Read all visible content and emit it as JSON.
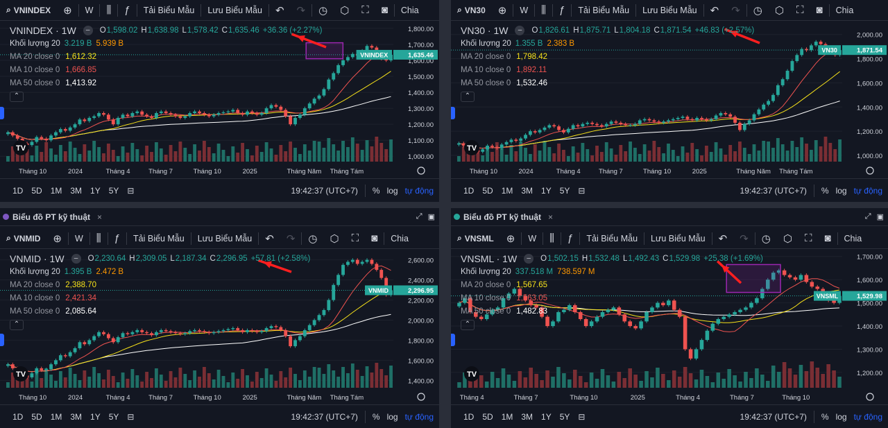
{
  "colors": {
    "up": "#26a69a",
    "down": "#ef5350",
    "ma20": "#f7e21a",
    "ma10": "#ef5350",
    "ma50": "#ffffff",
    "volUp": "#1f6f66",
    "volDown": "#7a2e34",
    "accent": "#2962ff",
    "highlight": "#9c27b0",
    "arrow": "#ff1f1f"
  },
  "toolbar": {
    "buttons": [
      "W",
      "Tải Biểu Mẫu",
      "Lưu Biểu Mẫu"
    ],
    "chia": "Chia"
  },
  "bottom": {
    "ranges": [
      "1D",
      "5D",
      "1M",
      "3M",
      "1Y",
      "5Y"
    ],
    "time": "19:42:37 (UTC+7)",
    "percent": "%",
    "log": "log",
    "auto": "tự động"
  },
  "tabs": {
    "title": "Biểu đồ PT kỹ thuật",
    "close": "×"
  },
  "charts": [
    {
      "symbol": "VNINDEX",
      "title": "VNINDEX · 1W",
      "ohlc": {
        "o": "1,598.02",
        "h": "1,638.98",
        "l": "1,578.42",
        "c": "1,635.46",
        "chg": "+36.36 (+2.27%)"
      },
      "volume": {
        "label": "Khối lượng 20",
        "v1": "3.219 B",
        "v2": "5.939 B"
      },
      "ma20": {
        "label": "MA 20 close 0",
        "value": "1,612.32"
      },
      "ma10": {
        "label": "MA 10 close 0",
        "value": "1,666.85"
      },
      "ma50": {
        "label": "MA 50 close 0",
        "value": "1,413.92"
      },
      "price_tag": {
        "label": "VNINDEX",
        "value": "1,635.46"
      },
      "ylim": [
        975,
        1830
      ],
      "y_ticks": [
        "1,800.00",
        "1,700.00",
        "1,600.00",
        "1,500.00",
        "1,400.00",
        "1,300.00",
        "1,200.00",
        "1,100.00",
        "1,000.00"
      ],
      "y_tick_values": [
        1800,
        1700,
        1600,
        1500,
        1400,
        1300,
        1200,
        1100,
        1000
      ],
      "x_ticks": [
        "Tháng 10",
        "2024",
        "Tháng 4",
        "Tháng 7",
        "Tháng 10",
        "2025",
        "Tháng Năm",
        "Tháng Tám"
      ],
      "x_tick_pos": [
        0.07,
        0.18,
        0.29,
        0.4,
        0.52,
        0.63,
        0.77,
        0.88
      ],
      "closes": [
        1150,
        1130,
        1110,
        1080,
        1070,
        1090,
        1120,
        1110,
        1100,
        1130,
        1150,
        1170,
        1160,
        1180,
        1200,
        1230,
        1220,
        1240,
        1250,
        1270,
        1260,
        1230,
        1200,
        1240,
        1260,
        1250,
        1270,
        1280,
        1260,
        1250,
        1240,
        1270,
        1280,
        1270,
        1260,
        1250,
        1240,
        1250,
        1270,
        1280,
        1270,
        1260,
        1250,
        1260,
        1270,
        1275,
        1280,
        1290,
        1270,
        1260,
        1280,
        1270,
        1260,
        1270,
        1300,
        1320,
        1310,
        1290,
        1250,
        1200,
        1240,
        1260,
        1300,
        1330,
        1360,
        1380,
        1420,
        1480,
        1520,
        1570,
        1600,
        1620,
        1640,
        1630,
        1660,
        1690,
        1680,
        1650,
        1610,
        1600,
        1635
      ],
      "highlight": [
        0.775,
        0.87,
        1610,
        1710
      ],
      "arrow": [
        470,
        68,
        428,
        52
      ]
    },
    {
      "symbol": "VN30",
      "title": "VN30 · 1W",
      "ohlc": {
        "o": "1,826.61",
        "h": "1,875.71",
        "l": "1,804.18",
        "c": "1,871.54",
        "chg": "+46.83 (+2.57%)"
      },
      "volume": {
        "label": "Khối lượng 20",
        "v1": "1.355 B",
        "v2": "2.383 B"
      },
      "ma20": {
        "label": "MA 20 close 0",
        "value": "1,798.42"
      },
      "ma10": {
        "label": "MA 10 close 0",
        "value": "1,892.11"
      },
      "ma50": {
        "label": "MA 50 close 0",
        "value": "1,532.46"
      },
      "price_tag": {
        "label": "VN30",
        "value": "1,871.54"
      },
      "ylim": [
        960,
        2090
      ],
      "y_ticks": [
        "2,000.00",
        "1,800.00",
        "1,600.00",
        "1,400.00",
        "1,200.00",
        "1,000.00"
      ],
      "y_tick_values": [
        2000,
        1800,
        1600,
        1400,
        1200,
        1000
      ],
      "x_ticks": [
        "Tháng 10",
        "2024",
        "Tháng 4",
        "Tháng 7",
        "Tháng 10",
        "2025",
        "Tháng Năm",
        "Tháng Tám"
      ],
      "x_tick_pos": [
        0.07,
        0.18,
        0.29,
        0.4,
        0.52,
        0.63,
        0.77,
        0.88
      ],
      "closes": [
        1100,
        1080,
        1060,
        1040,
        1030,
        1050,
        1080,
        1070,
        1060,
        1090,
        1110,
        1130,
        1120,
        1140,
        1170,
        1200,
        1190,
        1210,
        1230,
        1250,
        1240,
        1210,
        1190,
        1220,
        1250,
        1240,
        1260,
        1270,
        1260,
        1250,
        1240,
        1260,
        1280,
        1270,
        1260,
        1250,
        1250,
        1260,
        1290,
        1300,
        1290,
        1280,
        1270,
        1280,
        1290,
        1300,
        1310,
        1320,
        1300,
        1290,
        1310,
        1300,
        1290,
        1300,
        1330,
        1350,
        1340,
        1320,
        1270,
        1210,
        1260,
        1290,
        1340,
        1380,
        1420,
        1450,
        1500,
        1580,
        1630,
        1700,
        1780,
        1830,
        1880,
        1870,
        1910,
        1940,
        1920,
        1890,
        1850,
        1830,
        1871
      ],
      "highlight": null,
      "arrow": [
        1095,
        62,
        1052,
        45
      ]
    },
    {
      "symbol": "VNMID",
      "title": "VNMID · 1W",
      "ohlc": {
        "o": "2,230.64",
        "h": "2,309.05",
        "l": "2,187.34",
        "c": "2,296.95",
        "chg": "+57.81 (+2.58%)"
      },
      "volume": {
        "label": "Khối lượng 20",
        "v1": "1.395 B",
        "v2": "2.472 B"
      },
      "ma20": {
        "label": "MA 20 close 0",
        "value": "2,388.70"
      },
      "ma10": {
        "label": "MA 10 close 0",
        "value": "2,421.34"
      },
      "ma50": {
        "label": "MA 50 close 0",
        "value": "2,085.64"
      },
      "price_tag": {
        "label": "VNMID",
        "value": "2,296.95"
      },
      "ylim": [
        1340,
        2680
      ],
      "y_ticks": [
        "2,600.00",
        "2,400.00",
        "2,200.00",
        "2,000.00",
        "1,800.00",
        "1,600.00",
        "1,400.00"
      ],
      "y_tick_values": [
        2600,
        2400,
        2200,
        2000,
        1800,
        1600,
        1400
      ],
      "x_ticks": [
        "Tháng 10",
        "2024",
        "Tháng 4",
        "Tháng 7",
        "Tháng 10",
        "2025",
        "Tháng Năm",
        "Tháng Tám"
      ],
      "x_tick_pos": [
        0.07,
        0.18,
        0.29,
        0.4,
        0.52,
        0.63,
        0.77,
        0.88
      ],
      "closes": [
        1560,
        1520,
        1490,
        1450,
        1430,
        1470,
        1520,
        1500,
        1510,
        1560,
        1600,
        1650,
        1640,
        1680,
        1720,
        1780,
        1760,
        1800,
        1840,
        1880,
        1860,
        1820,
        1780,
        1830,
        1870,
        1860,
        1880,
        1900,
        1880,
        1870,
        1850,
        1880,
        1900,
        1890,
        1880,
        1870,
        1860,
        1870,
        1890,
        1900,
        1890,
        1880,
        1870,
        1880,
        1890,
        1900,
        1910,
        1920,
        1900,
        1880,
        1900,
        1890,
        1880,
        1890,
        1920,
        1940,
        1930,
        1900,
        1840,
        1740,
        1800,
        1840,
        1900,
        1950,
        2000,
        2050,
        2100,
        2200,
        2350,
        2450,
        2550,
        2580,
        2600,
        2560,
        2580,
        2600,
        2560,
        2500,
        2420,
        2250,
        2297
      ],
      "highlight": null,
      "arrow": [
        420,
        392,
        380,
        378
      ]
    },
    {
      "symbol": "VNSML",
      "title": "VNSML · 1W",
      "ohlc": {
        "o": "1,502.15",
        "h": "1,532.48",
        "l": "1,492.43",
        "c": "1,529.98",
        "chg": "+25.38 (+1.69%)"
      },
      "volume": {
        "label": "Khối lượng 20",
        "v1": "337.518 M",
        "v2": "738.597 M"
      },
      "ma20": {
        "label": "MA 20 close 0",
        "value": "1,567.65"
      },
      "ma10": {
        "label": "MA 10 close 0",
        "value": "1,563.05"
      },
      "ma50": {
        "label": "MA 50 close 0",
        "value": "1,482.83"
      },
      "price_tag": {
        "label": "VNSML",
        "value": "1,529.98"
      },
      "ylim": [
        1140,
        1720
      ],
      "y_ticks": [
        "1,700.00",
        "1,600.00",
        "1,500.00",
        "1,400.00",
        "1,300.00",
        "1,200.00"
      ],
      "y_tick_values": [
        1700,
        1600,
        1500,
        1400,
        1300,
        1200
      ],
      "x_ticks": [
        "Tháng 4",
        "Tháng 7",
        "Tháng 10",
        "2025",
        "Tháng 4",
        "Tháng 7",
        "Tháng 10"
      ],
      "x_tick_pos": [
        0.04,
        0.18,
        0.33,
        0.47,
        0.6,
        0.74,
        0.88
      ],
      "closes": [
        1500,
        1520,
        1460,
        1440,
        1430,
        1450,
        1470,
        1480,
        1520,
        1540,
        1560,
        1530,
        1510,
        1490,
        1480,
        1440,
        1400,
        1420,
        1460,
        1470,
        1490,
        1460,
        1430,
        1400,
        1420,
        1440,
        1460,
        1470,
        1480,
        1450,
        1420,
        1400,
        1390,
        1420,
        1460,
        1480,
        1500,
        1490,
        1510,
        1470,
        1440,
        1300,
        1260,
        1300,
        1340,
        1380,
        1410,
        1430,
        1440,
        1450,
        1460,
        1470,
        1480,
        1500,
        1520,
        1560,
        1600,
        1630,
        1640,
        1620,
        1610,
        1600,
        1620,
        1590,
        1570,
        1560,
        1540,
        1510,
        1500,
        1530
      ],
      "highlight": [
        0.7,
        0.84,
        1545,
        1665
      ],
      "arrow": [
        1068,
        408,
        1040,
        382
      ]
    }
  ]
}
